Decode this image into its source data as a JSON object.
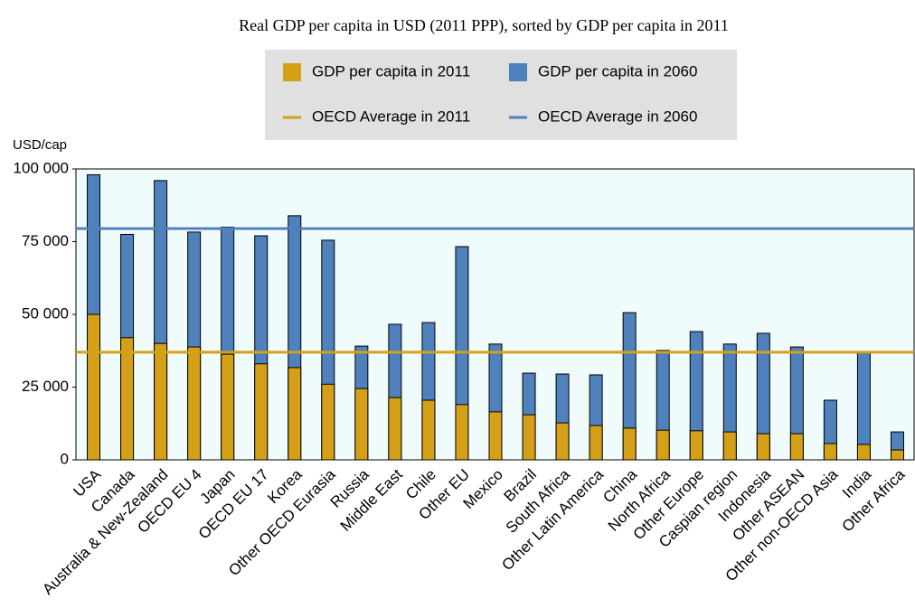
{
  "chart_data": {
    "type": "bar",
    "title": "Real GDP per capita in USD (2011 PPP), sorted by GDP per capita in 2011",
    "y_axis_label": "USD/cap",
    "categories": [
      "USA",
      "Canada",
      "Australia & New-Zealand",
      "OECD EU 4",
      "Japan",
      "OECD EU 17",
      "Korea",
      "Other OECD Eurasia",
      "Russia",
      "Middle East",
      "Chile",
      "Other EU",
      "Mexico",
      "Brazil",
      "South Africa",
      "Other Latin America",
      "China",
      "North Africa",
      "Other Europe",
      "Caspian region",
      "Indonesia",
      "Other ASEAN",
      "Other non-OECD Asia",
      "India",
      "Other Africa"
    ],
    "series": [
      {
        "name": "GDP per capita in 2060",
        "color": "#4f81bd",
        "values": [
          98000,
          77500,
          96000,
          78300,
          80000,
          77000,
          83900,
          75500,
          39100,
          46600,
          47200,
          73300,
          39800,
          29800,
          29500,
          29200,
          50600,
          37600,
          44100,
          39800,
          43500,
          38800,
          20500,
          37000,
          9600
        ]
      },
      {
        "name": "GDP per capita in 2011",
        "color": "#d4a017",
        "values": [
          50000,
          42000,
          40000,
          38800,
          36300,
          33000,
          31700,
          26000,
          24500,
          21400,
          20500,
          19000,
          16500,
          15500,
          12700,
          11800,
          10900,
          10200,
          10000,
          9600,
          9000,
          9000,
          5600,
          5300,
          3400
        ]
      }
    ],
    "reference_lines": [
      {
        "name": "OECD Average in 2011",
        "color": "#d4a017",
        "value": 37000
      },
      {
        "name": "OECD Average in 2060",
        "color": "#4f81bd",
        "value": 79500
      }
    ],
    "legend_order": [
      "chart_data.series.1",
      "chart_data.series.0",
      "chart_data.reference_lines.0",
      "chart_data.reference_lines.1"
    ],
    "ylim": [
      0,
      100000
    ],
    "yticks": [
      0,
      {
        "value": 25000,
        "label": "25 000"
      },
      {
        "value": 50000,
        "label": "50 000"
      },
      {
        "value": 75000,
        "label": "75 000"
      },
      {
        "value": 100000,
        "label": "100 000"
      }
    ]
  }
}
